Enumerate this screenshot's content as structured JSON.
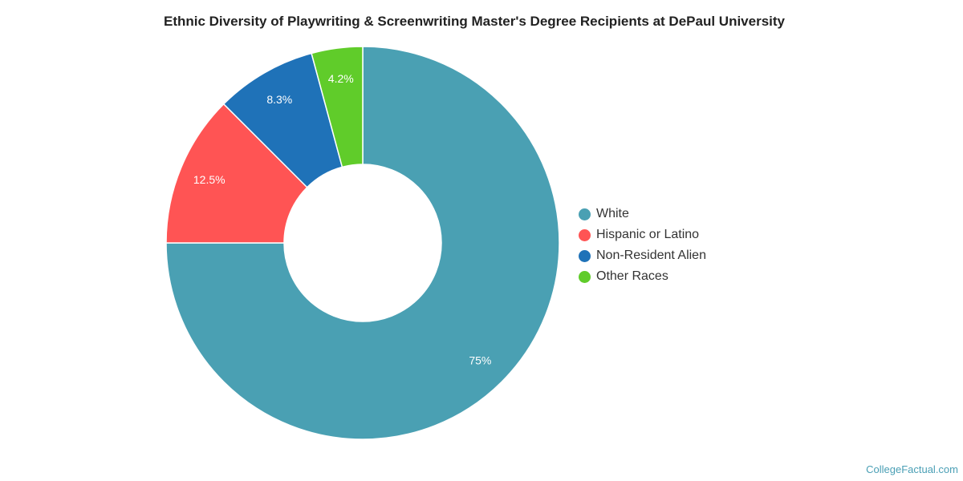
{
  "chart_data": {
    "type": "pie",
    "title": "Ethnic Diversity of Playwriting & Screenwriting Master's Degree Recipients at DePaul University",
    "donut": true,
    "categories": [
      "White",
      "Hispanic or Latino",
      "Non-Resident Alien",
      "Other Races"
    ],
    "values": [
      75,
      12.5,
      8.3,
      4.2
    ],
    "labels": [
      "75%",
      "12.5%",
      "8.3%",
      "4.2%"
    ],
    "colors": [
      "#4aa0b3",
      "#ff5454",
      "#1f72b8",
      "#60cc2a"
    ],
    "legend_position": "right"
  },
  "footer": {
    "source": "CollegeFactual.com"
  }
}
